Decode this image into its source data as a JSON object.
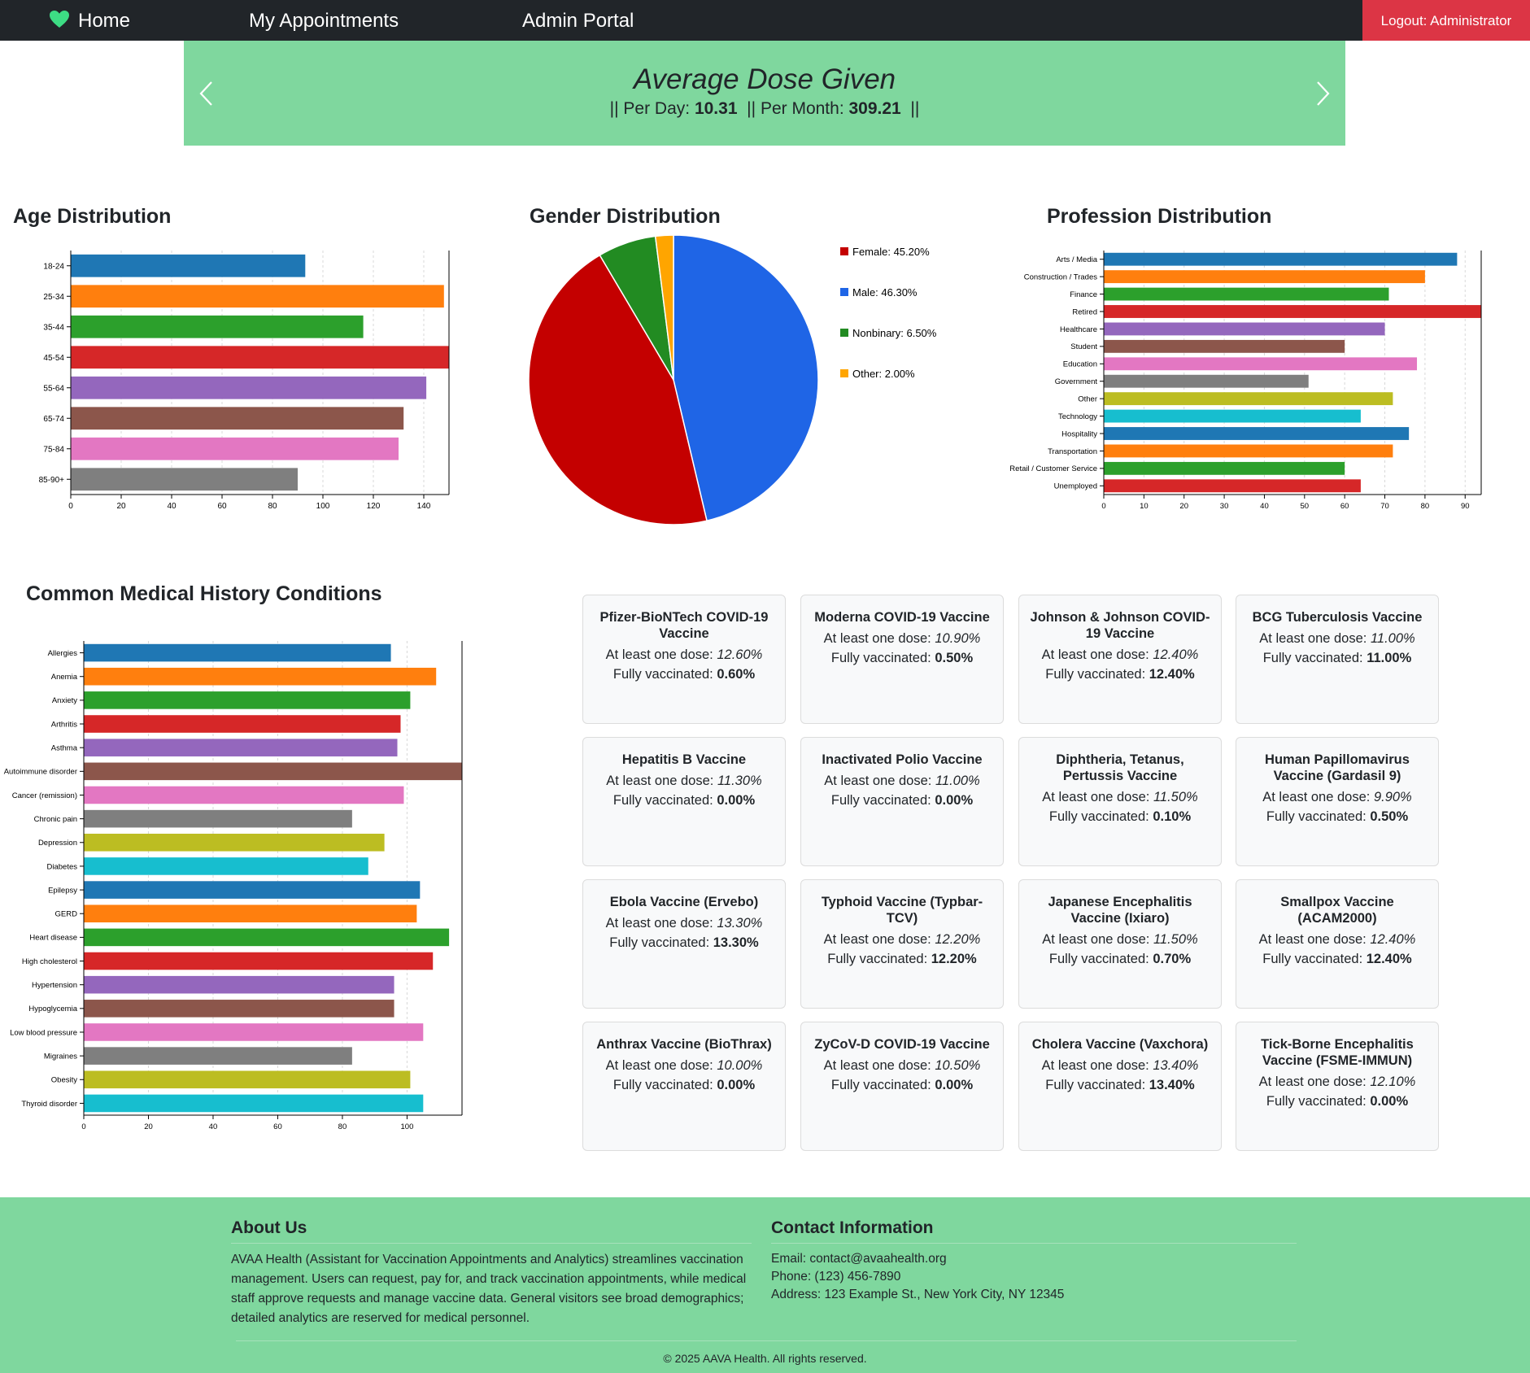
{
  "nav": {
    "home": "Home",
    "appointments": "My Appointments",
    "admin": "Admin Portal",
    "logout": "Logout: Administrator",
    "heart_color": "#3ddc84"
  },
  "carousel": {
    "title": "Average Dose Given",
    "per_day_label": "Per Day:",
    "per_day_value": "10.31",
    "per_month_label": "Per Month:",
    "per_month_value": "309.21",
    "background": "#7fd79e"
  },
  "charts": {
    "age_title": "Age Distribution",
    "gender_title": "Gender Distribution",
    "profession_title": "Profession Distribution",
    "medical_title": "Common Medical History Conditions"
  },
  "chart_data": [
    {
      "type": "bar",
      "orientation": "horizontal",
      "title": "Age Distribution",
      "categories": [
        "18-24",
        "25-34",
        "35-44",
        "45-54",
        "55-64",
        "65-74",
        "75-84",
        "85-90+"
      ],
      "values": [
        93,
        148,
        116,
        150,
        141,
        132,
        130,
        90
      ],
      "xlim": [
        0,
        150
      ],
      "ticks": [
        0,
        20,
        40,
        60,
        80,
        100,
        120,
        140
      ],
      "grid": "vertical dashed",
      "colors": [
        "#1f77b4",
        "#ff7f0e",
        "#2ca02c",
        "#d62728",
        "#9467bd",
        "#8c564b",
        "#e377c2",
        "#7f7f7f"
      ]
    },
    {
      "type": "pie",
      "title": "Gender Distribution",
      "categories": [
        "Female",
        "Male",
        "Nonbinary",
        "Other"
      ],
      "values": [
        45.2,
        46.3,
        6.5,
        2.0
      ],
      "legend_labels": [
        "Female: 45.20%",
        "Male: 46.30%",
        "Nonbinary: 6.50%",
        "Other: 2.00%"
      ],
      "legend": "right",
      "colors": [
        "#c40000",
        "#1f65e6",
        "#228b22",
        "#ffa500"
      ]
    },
    {
      "type": "bar",
      "orientation": "horizontal",
      "title": "Profession Distribution",
      "categories": [
        "Arts / Media",
        "Construction / Trades",
        "Finance",
        "Retired",
        "Healthcare",
        "Student",
        "Education",
        "Government",
        "Other",
        "Technology",
        "Hospitality",
        "Transportation",
        "Retail / Customer Service",
        "Unemployed"
      ],
      "values": [
        88,
        80,
        71,
        94,
        70,
        60,
        78,
        51,
        72,
        64,
        76,
        72,
        60,
        64
      ],
      "xlim": [
        0,
        94
      ],
      "ticks": [
        0,
        10,
        20,
        30,
        40,
        50,
        60,
        70,
        80,
        90
      ],
      "grid": "vertical dashed",
      "colors": [
        "#1f77b4",
        "#ff7f0e",
        "#2ca02c",
        "#d62728",
        "#9467bd",
        "#8c564b",
        "#e377c2",
        "#7f7f7f",
        "#bcbd22",
        "#17becf"
      ]
    },
    {
      "type": "bar",
      "orientation": "horizontal",
      "title": "Common Medical History Conditions",
      "categories": [
        "Allergies",
        "Anemia",
        "Anxiety",
        "Arthritis",
        "Asthma",
        "Autoimmune disorder",
        "Cancer (remission)",
        "Chronic pain",
        "Depression",
        "Diabetes",
        "Epilepsy",
        "GERD",
        "Heart disease",
        "High cholesterol",
        "Hypertension",
        "Hypoglycemia",
        "Low blood pressure",
        "Migraines",
        "Obesity",
        "Thyroid disorder"
      ],
      "values": [
        95,
        109,
        101,
        98,
        97,
        117,
        99,
        83,
        93,
        88,
        104,
        103,
        113,
        108,
        96,
        96,
        105,
        83,
        101,
        105
      ],
      "xlim": [
        0,
        117
      ],
      "ticks": [
        0,
        20,
        40,
        60,
        80,
        100
      ],
      "grid": "vertical dashed",
      "colors": [
        "#1f77b4",
        "#ff7f0e",
        "#2ca02c",
        "#d62728",
        "#9467bd",
        "#8c564b",
        "#e377c2",
        "#7f7f7f",
        "#bcbd22",
        "#17becf"
      ]
    }
  ],
  "vaccines": {
    "dose_label": "At least one dose:",
    "full_label": "Fully vaccinated:",
    "items": [
      {
        "name": "Pfizer-BioNTech COVID-19 Vaccine",
        "dose": "12.60%",
        "full": "0.60%"
      },
      {
        "name": "Moderna COVID-19 Vaccine",
        "dose": "10.90%",
        "full": "0.50%"
      },
      {
        "name": "Johnson & Johnson COVID-19 Vaccine",
        "dose": "12.40%",
        "full": "12.40%"
      },
      {
        "name": "BCG Tuberculosis Vaccine",
        "dose": "11.00%",
        "full": "11.00%"
      },
      {
        "name": "Hepatitis B Vaccine",
        "dose": "11.30%",
        "full": "0.00%"
      },
      {
        "name": "Inactivated Polio Vaccine",
        "dose": "11.00%",
        "full": "0.00%"
      },
      {
        "name": "Diphtheria, Tetanus, Pertussis Vaccine",
        "dose": "11.50%",
        "full": "0.10%"
      },
      {
        "name": "Human Papillomavirus Vaccine (Gardasil 9)",
        "dose": "9.90%",
        "full": "0.50%"
      },
      {
        "name": "Ebola Vaccine (Ervebo)",
        "dose": "13.30%",
        "full": "13.30%"
      },
      {
        "name": "Typhoid Vaccine (Typbar-TCV)",
        "dose": "12.20%",
        "full": "12.20%"
      },
      {
        "name": "Japanese Encephalitis Vaccine (Ixiaro)",
        "dose": "11.50%",
        "full": "0.70%"
      },
      {
        "name": "Smallpox Vaccine (ACAM2000)",
        "dose": "12.40%",
        "full": "12.40%"
      },
      {
        "name": "Anthrax Vaccine (BioThrax)",
        "dose": "10.00%",
        "full": "0.00%"
      },
      {
        "name": "ZyCoV-D COVID-19 Vaccine",
        "dose": "10.50%",
        "full": "0.00%"
      },
      {
        "name": "Cholera Vaccine (Vaxchora)",
        "dose": "13.40%",
        "full": "13.40%"
      },
      {
        "name": "Tick-Borne Encephalitis Vaccine (FSME-IMMUN)",
        "dose": "12.10%",
        "full": "0.00%"
      }
    ]
  },
  "footer": {
    "about_title": "About Us",
    "about_text": "AVAA Health (Assistant for Vaccination Appointments and Analytics) streamlines vaccination management. Users can request, pay for, and track vaccination appointments, while medical staff approve requests and manage vaccine data. General visitors see broad demographics; detailed analytics are reserved for medical personnel.",
    "contact_title": "Contact Information",
    "email": "Email: contact@avaahealth.org",
    "phone": "Phone: (123) 456-7890",
    "address": "Address: 123 Example St., New York City, NY 12345",
    "copyright": "© 2025 AAVA Health. All rights reserved."
  }
}
